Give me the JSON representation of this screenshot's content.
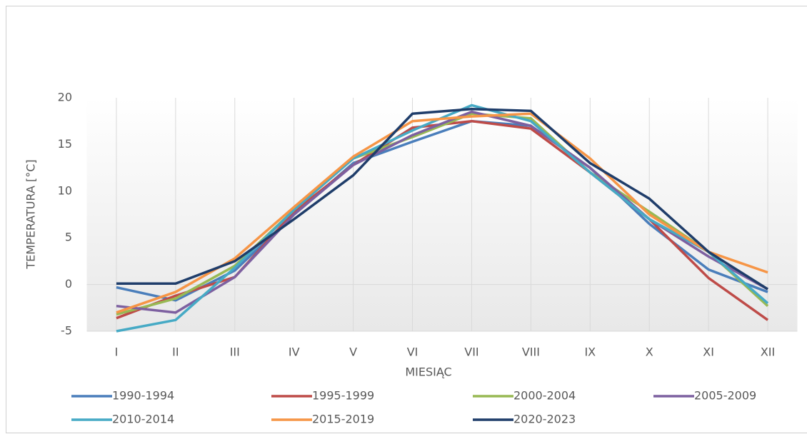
{
  "chart_data": {
    "type": "line",
    "x_label": "MIESIĄC",
    "y_label": "TEMPERATURA [°C]",
    "categories": [
      "I",
      "II",
      "III",
      "IV",
      "V",
      "VI",
      "VII",
      "VIII",
      "IX",
      "X",
      "XI",
      "XII"
    ],
    "series": [
      {
        "name": "1990-1994",
        "color": "#4a7ebb",
        "values": [
          -0.3,
          -1.7,
          1.5,
          7.5,
          13,
          15.3,
          17.5,
          17,
          12.5,
          6.5,
          1.6,
          -0.8
        ]
      },
      {
        "name": "1995-1999",
        "color": "#be4b48",
        "values": [
          -3.6,
          -1.2,
          0.8,
          7.8,
          12.8,
          16.8,
          17.5,
          16.7,
          12,
          7,
          0.7,
          -3.8
        ]
      },
      {
        "name": "2000-2004",
        "color": "#98b954",
        "values": [
          -3.2,
          -1.5,
          2,
          8,
          13.5,
          15.8,
          18.3,
          17.8,
          12,
          7.8,
          3.5,
          -2.3
        ]
      },
      {
        "name": "2005-2009",
        "color": "#7d60a0",
        "values": [
          -2.3,
          -3,
          0.8,
          7.5,
          12.8,
          16,
          18.5,
          17,
          12.5,
          7,
          3,
          -0.5
        ]
      },
      {
        "name": "2010-2014",
        "color": "#46aac5",
        "values": [
          -5,
          -3.8,
          1.8,
          8,
          13.5,
          16.5,
          19.2,
          17.5,
          12,
          7,
          3.5,
          -2
        ]
      },
      {
        "name": "2015-2019",
        "color": "#f69546",
        "values": [
          -3,
          -0.8,
          2.8,
          8.3,
          13.7,
          17.5,
          18,
          18.3,
          13.5,
          7.5,
          3.5,
          1.3
        ]
      },
      {
        "name": "2020-2023",
        "color": "#1f3d6a",
        "values": [
          0.1,
          0.1,
          2.5,
          7,
          11.7,
          18.3,
          18.8,
          18.6,
          13,
          9.2,
          3.5,
          -0.5
        ]
      }
    ],
    "ylim": [
      -5,
      20
    ],
    "yticks": [
      -5,
      0,
      5,
      10,
      15,
      20
    ],
    "grid": true
  }
}
